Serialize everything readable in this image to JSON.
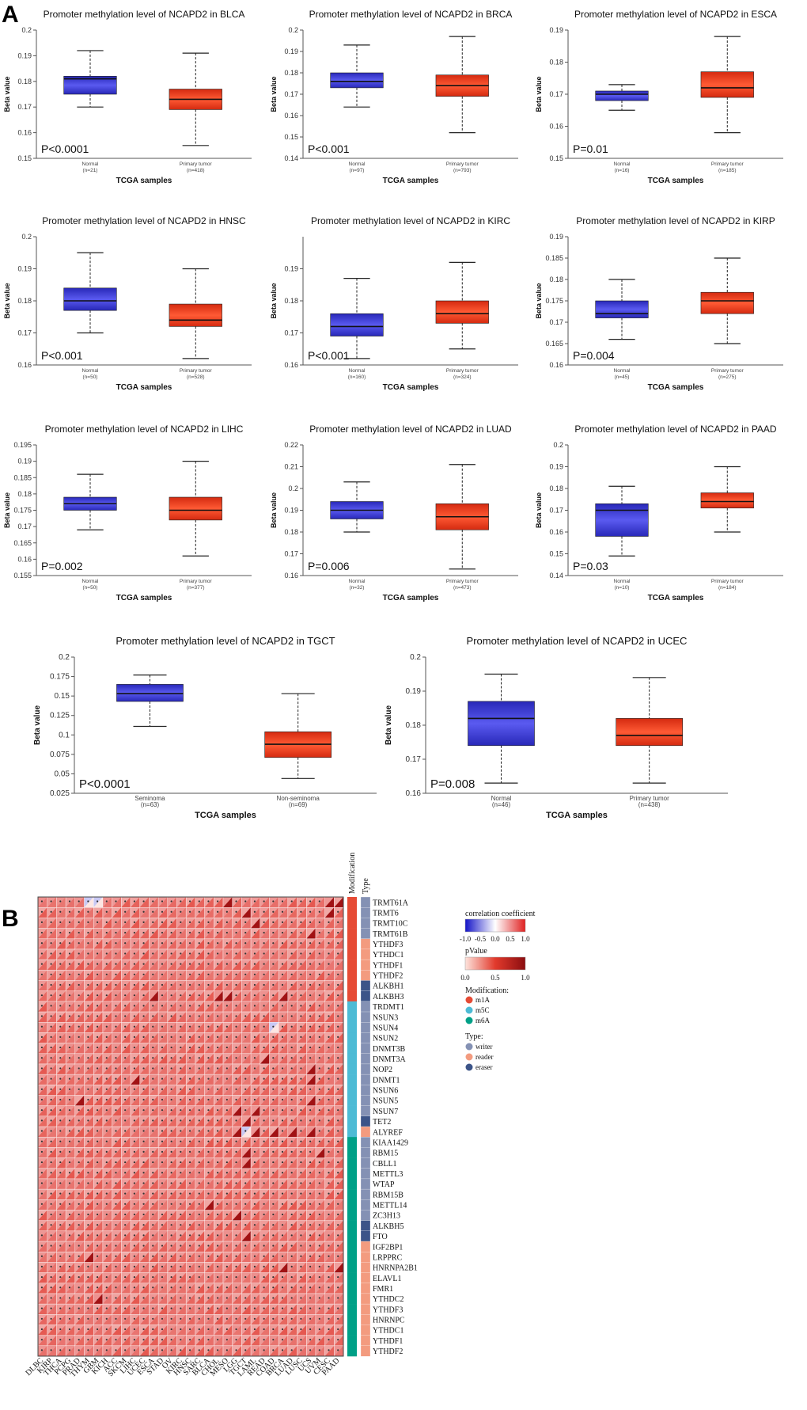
{
  "panel_labels": [
    "A",
    "B"
  ],
  "colors": {
    "normal_box": "#3a3ad2",
    "tumor_box": "#ea3c1c",
    "box_edge": "#222222",
    "heat_pos": "#d7191c",
    "heat_neg": "#2b2bd0",
    "m1A": "#e64b35",
    "m5C": "#4dbbd5",
    "m6A": "#00a087",
    "writer": "#8491b4",
    "reader": "#f39b7f",
    "eraser": "#3c5488"
  },
  "chart_data": [
    {
      "type": "box",
      "title": "Promoter methylation level of NCAPD2 in BLCA",
      "xlabel": "TCGA samples",
      "ylabel": "Beta value",
      "ylim": [
        0.15,
        0.2
      ],
      "yticks": [
        "0.15",
        "0.16",
        "0.17",
        "0.18",
        "0.19",
        "0.2"
      ],
      "pvalue": "P<0.0001",
      "groups": [
        {
          "name": "Normal",
          "n": "(n=21)",
          "min": 0.17,
          "q1": 0.175,
          "median": 0.181,
          "q3": 0.182,
          "max": 0.192
        },
        {
          "name": "Primary tumor",
          "n": "(n=418)",
          "min": 0.155,
          "q1": 0.169,
          "median": 0.173,
          "q3": 0.177,
          "max": 0.191
        }
      ]
    },
    {
      "type": "box",
      "title": "Promoter methylation level of NCAPD2 in BRCA",
      "xlabel": "TCGA samples",
      "ylabel": "Beta value",
      "ylim": [
        0.14,
        0.2
      ],
      "yticks": [
        "0.14",
        "0.15",
        "0.16",
        "0.17",
        "0.18",
        "0.19",
        "0.2"
      ],
      "pvalue": "P<0.001",
      "groups": [
        {
          "name": "Normal",
          "n": "(n=97)",
          "min": 0.164,
          "q1": 0.173,
          "median": 0.176,
          "q3": 0.18,
          "max": 0.193
        },
        {
          "name": "Primary tumor",
          "n": "(n=793)",
          "min": 0.152,
          "q1": 0.169,
          "median": 0.174,
          "q3": 0.179,
          "max": 0.197
        }
      ]
    },
    {
      "type": "box",
      "title": "Promoter methylation level of NCAPD2 in ESCA",
      "xlabel": "TCGA samples",
      "ylabel": "Beta value",
      "ylim": [
        0.15,
        0.19
      ],
      "yticks": [
        "0.15",
        "0.16",
        "0.17",
        "0.18",
        "0.19"
      ],
      "pvalue": "P=0.01",
      "groups": [
        {
          "name": "Normal",
          "n": "(n=16)",
          "min": 0.165,
          "q1": 0.168,
          "median": 0.17,
          "q3": 0.171,
          "max": 0.173
        },
        {
          "name": "Primary tumor",
          "n": "(n=185)",
          "min": 0.158,
          "q1": 0.169,
          "median": 0.172,
          "q3": 0.177,
          "max": 0.188
        }
      ]
    },
    {
      "type": "box",
      "title": "Promoter methylation level of NCAPD2 in HNSC",
      "xlabel": "TCGA samples",
      "ylabel": "Beta value",
      "ylim": [
        0.16,
        0.2
      ],
      "yticks": [
        "0.16",
        "0.17",
        "0.18",
        "0.19",
        "0.2"
      ],
      "pvalue": "P<0.001",
      "groups": [
        {
          "name": "Normal",
          "n": "(n=50)",
          "min": 0.17,
          "q1": 0.177,
          "median": 0.18,
          "q3": 0.184,
          "max": 0.195
        },
        {
          "name": "Primary tumor",
          "n": "(n=528)",
          "min": 0.162,
          "q1": 0.172,
          "median": 0.174,
          "q3": 0.179,
          "max": 0.19
        }
      ]
    },
    {
      "type": "box",
      "title": "Promoter methylation level of NCAPD2 in KIRC",
      "xlabel": "TCGA samples",
      "ylabel": "Beta value",
      "ylim": [
        0.16,
        0.2
      ],
      "yticks": [
        "0.16",
        "0.17",
        "0.18",
        "0.19"
      ],
      "pvalue": "P<0.001",
      "groups": [
        {
          "name": "Normal",
          "n": "(n=160)",
          "min": 0.162,
          "q1": 0.169,
          "median": 0.172,
          "q3": 0.176,
          "max": 0.187
        },
        {
          "name": "Primary tumor",
          "n": "(n=324)",
          "min": 0.165,
          "q1": 0.173,
          "median": 0.176,
          "q3": 0.18,
          "max": 0.192
        }
      ]
    },
    {
      "type": "box",
      "title": "Promoter methylation level of NCAPD2 in KIRP",
      "xlabel": "TCGA samples",
      "ylabel": "Beta value",
      "ylim": [
        0.16,
        0.19
      ],
      "yticks": [
        "0.16",
        "0.165",
        "0.17",
        "0.175",
        "0.18",
        "0.185",
        "0.19"
      ],
      "pvalue": "P=0.004",
      "groups": [
        {
          "name": "Normal",
          "n": "(n=45)",
          "min": 0.166,
          "q1": 0.171,
          "median": 0.172,
          "q3": 0.175,
          "max": 0.18
        },
        {
          "name": "Primary tumor",
          "n": "(n=275)",
          "min": 0.165,
          "q1": 0.172,
          "median": 0.175,
          "q3": 0.177,
          "max": 0.185
        }
      ]
    },
    {
      "type": "box",
      "title": "Promoter methylation level of NCAPD2 in LIHC",
      "xlabel": "TCGA samples",
      "ylabel": "Beta value",
      "ylim": [
        0.155,
        0.195
      ],
      "yticks": [
        "0.155",
        "0.16",
        "0.165",
        "0.17",
        "0.175",
        "0.18",
        "0.185",
        "0.19",
        "0.195"
      ],
      "pvalue": "P=0.002",
      "groups": [
        {
          "name": "Normal",
          "n": "(n=50)",
          "min": 0.169,
          "q1": 0.175,
          "median": 0.177,
          "q3": 0.179,
          "max": 0.186
        },
        {
          "name": "Primary tumor",
          "n": "(n=377)",
          "min": 0.161,
          "q1": 0.172,
          "median": 0.175,
          "q3": 0.179,
          "max": 0.19
        }
      ]
    },
    {
      "type": "box",
      "title": "Promoter methylation level of NCAPD2 in LUAD",
      "xlabel": "TCGA samples",
      "ylabel": "Beta value",
      "ylim": [
        0.16,
        0.22
      ],
      "yticks": [
        "0.16",
        "0.17",
        "0.18",
        "0.19",
        "0.2",
        "0.21",
        "0.22"
      ],
      "pvalue": "P=0.006",
      "groups": [
        {
          "name": "Normal",
          "n": "(n=32)",
          "min": 0.18,
          "q1": 0.186,
          "median": 0.19,
          "q3": 0.194,
          "max": 0.203
        },
        {
          "name": "Primary tumor",
          "n": "(n=473)",
          "min": 0.163,
          "q1": 0.181,
          "median": 0.187,
          "q3": 0.193,
          "max": 0.211
        }
      ]
    },
    {
      "type": "box",
      "title": "Promoter methylation level of NCAPD2 in PAAD",
      "xlabel": "TCGA samples",
      "ylabel": "Beta value",
      "ylim": [
        0.14,
        0.2
      ],
      "yticks": [
        "0.14",
        "0.15",
        "0.16",
        "0.17",
        "0.18",
        "0.19",
        "0.2"
      ],
      "pvalue": "P=0.03",
      "groups": [
        {
          "name": "Normal",
          "n": "(n=10)",
          "min": 0.149,
          "q1": 0.158,
          "median": 0.17,
          "q3": 0.173,
          "max": 0.181
        },
        {
          "name": "Primary tumor",
          "n": "(n=184)",
          "min": 0.16,
          "q1": 0.171,
          "median": 0.174,
          "q3": 0.178,
          "max": 0.19
        }
      ]
    },
    {
      "type": "box",
      "title": "Promoter methylation level of NCAPD2 in TGCT",
      "xlabel": "TCGA samples",
      "ylabel": "Beta value",
      "ylim": [
        0.025,
        0.2
      ],
      "yticks": [
        "0.025",
        "0.05",
        "0.075",
        "0.1",
        "0.125",
        "0.15",
        "0.175",
        "0.2"
      ],
      "pvalue": "P<0.0001",
      "groups": [
        {
          "name": "Seminoma",
          "n": "(n=63)",
          "min": 0.111,
          "q1": 0.143,
          "median": 0.153,
          "q3": 0.165,
          "max": 0.177
        },
        {
          "name": "Non-seminoma",
          "n": "(n=69)",
          "min": 0.044,
          "q1": 0.071,
          "median": 0.088,
          "q3": 0.104,
          "max": 0.153
        }
      ]
    },
    {
      "type": "box",
      "title": "Promoter methylation level of NCAPD2 in UCEC",
      "xlabel": "TCGA samples",
      "ylabel": "Beta value",
      "ylim": [
        0.16,
        0.2
      ],
      "yticks": [
        "0.16",
        "0.17",
        "0.18",
        "0.19",
        "0.2"
      ],
      "pvalue": "P=0.008",
      "groups": [
        {
          "name": "Normal",
          "n": "(n=46)",
          "min": 0.163,
          "q1": 0.174,
          "median": 0.182,
          "q3": 0.187,
          "max": 0.195
        },
        {
          "name": "Primary tumor",
          "n": "(n=438)",
          "min": 0.163,
          "q1": 0.174,
          "median": 0.177,
          "q3": 0.182,
          "max": 0.194
        }
      ]
    },
    {
      "type": "heatmap",
      "columns": [
        "DLBC",
        "KIRP",
        "THCA",
        "PCPG",
        "PRAD",
        "THYM",
        "GBM",
        "KICH",
        "ACC",
        "SKCM",
        "LIHC",
        "UCEC",
        "ESCA",
        "STAD",
        "OV",
        "KIRC",
        "HNSC",
        "SARC",
        "BLCA",
        "CHOL",
        "MESO",
        "LGG",
        "TGCT",
        "LAML",
        "READ",
        "COAD",
        "BRCA",
        "LUAD",
        "LUSC",
        "UCS",
        "UVM",
        "CESC",
        "PAAD"
      ],
      "rows": [
        "TRMT61A",
        "TRMT6",
        "TRMT10C",
        "TRMT61B",
        "YTHDF3",
        "YTHDC1",
        "YTHDF1",
        "YTHDF2",
        "ALKBH1",
        "ALKBH3",
        "TRDMT1",
        "NSUN3",
        "NSUN4",
        "NSUN2",
        "DNMT3B",
        "DNMT3A",
        "NOP2",
        "DNMT1",
        "NSUN6",
        "NSUN5",
        "NSUN7",
        "TET2",
        "ALYREF",
        "KIAA1429",
        "RBM15",
        "CBLL1",
        "METTL3",
        "WTAP",
        "RBM15B",
        "METTL14",
        "ZC3H13",
        "ALKBH5",
        "FTO",
        "IGF2BP1",
        "LRPPRC",
        "HNRNPA2B1",
        "ELAVL1",
        "FMR1",
        "YTHDC2",
        "YTHDF3",
        "HNRNPC",
        "YTHDC1",
        "YTHDF1",
        "YTHDF2"
      ],
      "modification": [
        "m1A",
        "m1A",
        "m1A",
        "m1A",
        "m1A",
        "m1A",
        "m1A",
        "m1A",
        "m1A",
        "m1A",
        "m5C",
        "m5C",
        "m5C",
        "m5C",
        "m5C",
        "m5C",
        "m5C",
        "m5C",
        "m5C",
        "m5C",
        "m5C",
        "m5C",
        "m5C",
        "m6A",
        "m6A",
        "m6A",
        "m6A",
        "m6A",
        "m6A",
        "m6A",
        "m6A",
        "m6A",
        "m6A",
        "m6A",
        "m6A",
        "m6A",
        "m6A",
        "m6A",
        "m6A",
        "m6A",
        "m6A",
        "m6A",
        "m6A",
        "m6A"
      ],
      "rtype": [
        "writer",
        "writer",
        "writer",
        "writer",
        "reader",
        "reader",
        "reader",
        "reader",
        "eraser",
        "eraser",
        "writer",
        "writer",
        "writer",
        "writer",
        "writer",
        "writer",
        "writer",
        "writer",
        "writer",
        "writer",
        "writer",
        "eraser",
        "reader",
        "writer",
        "writer",
        "writer",
        "writer",
        "writer",
        "writer",
        "writer",
        "writer",
        "eraser",
        "eraser",
        "reader",
        "reader",
        "reader",
        "reader",
        "reader",
        "reader",
        "reader",
        "reader",
        "reader",
        "reader",
        "reader"
      ],
      "strong_cells": [
        [
          0,
          20
        ],
        [
          0,
          31
        ],
        [
          0,
          32
        ],
        [
          1,
          22
        ],
        [
          1,
          31
        ],
        [
          2,
          23
        ],
        [
          3,
          29
        ],
        [
          9,
          12
        ],
        [
          9,
          19
        ],
        [
          9,
          20
        ],
        [
          9,
          26
        ],
        [
          15,
          24
        ],
        [
          16,
          29
        ],
        [
          17,
          10
        ],
        [
          17,
          29
        ],
        [
          19,
          4
        ],
        [
          19,
          29
        ],
        [
          20,
          21
        ],
        [
          20,
          23
        ],
        [
          21,
          22
        ],
        [
          22,
          21
        ],
        [
          22,
          23
        ],
        [
          22,
          25
        ],
        [
          22,
          27
        ],
        [
          22,
          29
        ],
        [
          24,
          22
        ],
        [
          24,
          30
        ],
        [
          25,
          22
        ],
        [
          29,
          18
        ],
        [
          30,
          21
        ],
        [
          32,
          22
        ],
        [
          34,
          5
        ],
        [
          35,
          26
        ],
        [
          35,
          32
        ],
        [
          38,
          6
        ]
      ],
      "neg_cells": [
        [
          0,
          5
        ],
        [
          0,
          6
        ],
        [
          22,
          22
        ],
        [
          12,
          25
        ]
      ],
      "col_header_mod": "Modification",
      "col_header_type": "Type",
      "legend": {
        "corr_title": "correlation coefficient",
        "corr_ticks": [
          "-1.0",
          "-0.5",
          "0.0",
          "0.5",
          "1.0"
        ],
        "p_title": "pValue",
        "p_ticks": [
          "0.0",
          "0.5",
          "1.0"
        ],
        "mod_title": "Modification:",
        "mod_items": [
          "m1A",
          "m5C",
          "m6A"
        ],
        "type_title": "Type:",
        "type_items": [
          "writer",
          "reader",
          "eraser"
        ]
      }
    }
  ]
}
